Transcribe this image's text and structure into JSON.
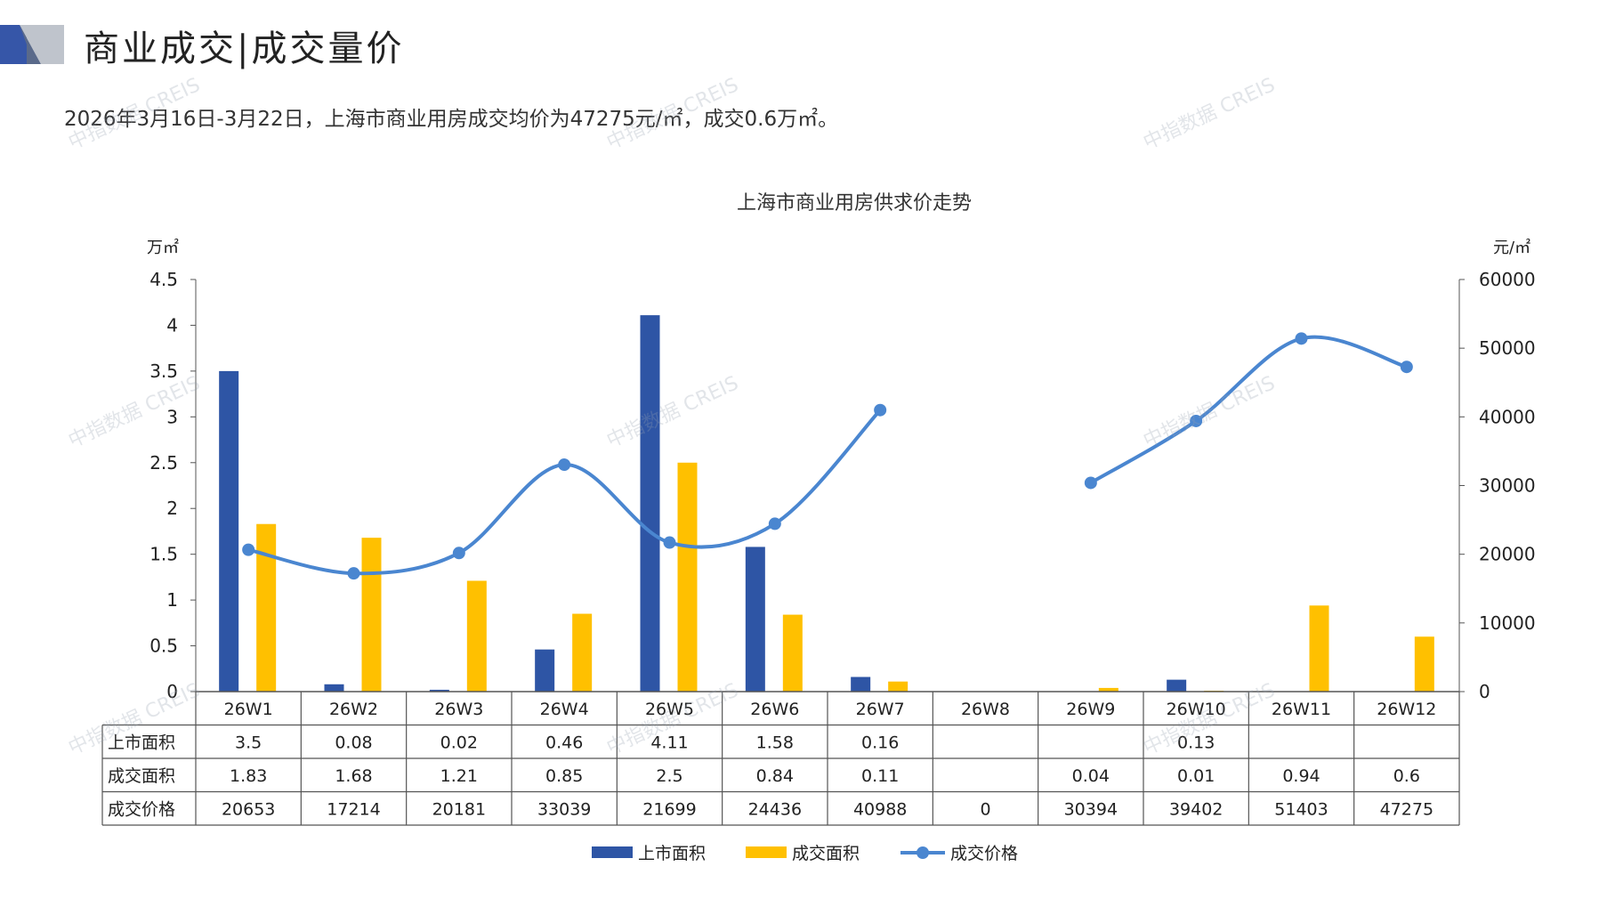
{
  "header": {
    "title": "商业成交|成交量价",
    "summary": "2026年3月16日-3月22日，上海市商业用房成交均价为47275元/㎡，成交0.6万㎡。"
  },
  "watermark": "中指数据 CREIS",
  "colors": {
    "bar_supply": "#2E55A5",
    "bar_deal": "#FFC000",
    "line_price": "#4A86D0",
    "logo_blue": "#3656A8",
    "logo_gray": "#BFC4CC"
  },
  "chart_data": {
    "type": "bar",
    "title": "上海市商业用房供求价走势",
    "ylabel_left": "万㎡",
    "ylabel_right": "元/㎡",
    "ylim_left": [
      0,
      4.5
    ],
    "yticks_left": [
      "0",
      "0.5",
      "1",
      "1.5",
      "2",
      "2.5",
      "3",
      "3.5",
      "4",
      "4.5"
    ],
    "ylim_right": [
      0,
      60000
    ],
    "yticks_right": [
      "0",
      "10000",
      "20000",
      "30000",
      "40000",
      "50000",
      "60000"
    ],
    "categories": [
      "26W1",
      "26W2",
      "26W3",
      "26W4",
      "26W5",
      "26W6",
      "26W7",
      "26W8",
      "26W9",
      "26W10",
      "26W11",
      "26W12"
    ],
    "series": [
      {
        "name": "上市面积",
        "type": "bar",
        "axis": "left",
        "values": [
          3.5,
          0.08,
          0.02,
          0.46,
          4.11,
          1.58,
          0.16,
          null,
          null,
          0.13,
          null,
          null
        ],
        "labels": [
          "3.5",
          "0.08",
          "0.02",
          "0.46",
          "4.11",
          "1.58",
          "0.16",
          "",
          "",
          "0.13",
          "",
          ""
        ]
      },
      {
        "name": "成交面积",
        "type": "bar",
        "axis": "left",
        "values": [
          1.83,
          1.68,
          1.21,
          0.85,
          2.5,
          0.84,
          0.11,
          null,
          0.04,
          0.01,
          0.94,
          0.6
        ],
        "labels": [
          "1.83",
          "1.68",
          "1.21",
          "0.85",
          "2.5",
          "0.84",
          "0.11",
          "",
          "0.04",
          "0.01",
          "0.94",
          "0.6"
        ]
      },
      {
        "name": "成交价格",
        "type": "line",
        "axis": "right",
        "values": [
          20653,
          17214,
          20181,
          33039,
          21699,
          24436,
          40988,
          0,
          30394,
          39402,
          51403,
          47275
        ],
        "labels": [
          "20653",
          "17214",
          "20181",
          "33039",
          "21699",
          "24436",
          "40988",
          "0",
          "30394",
          "39402",
          "51403",
          "47275"
        ]
      }
    ],
    "legend_position": "bottom"
  }
}
